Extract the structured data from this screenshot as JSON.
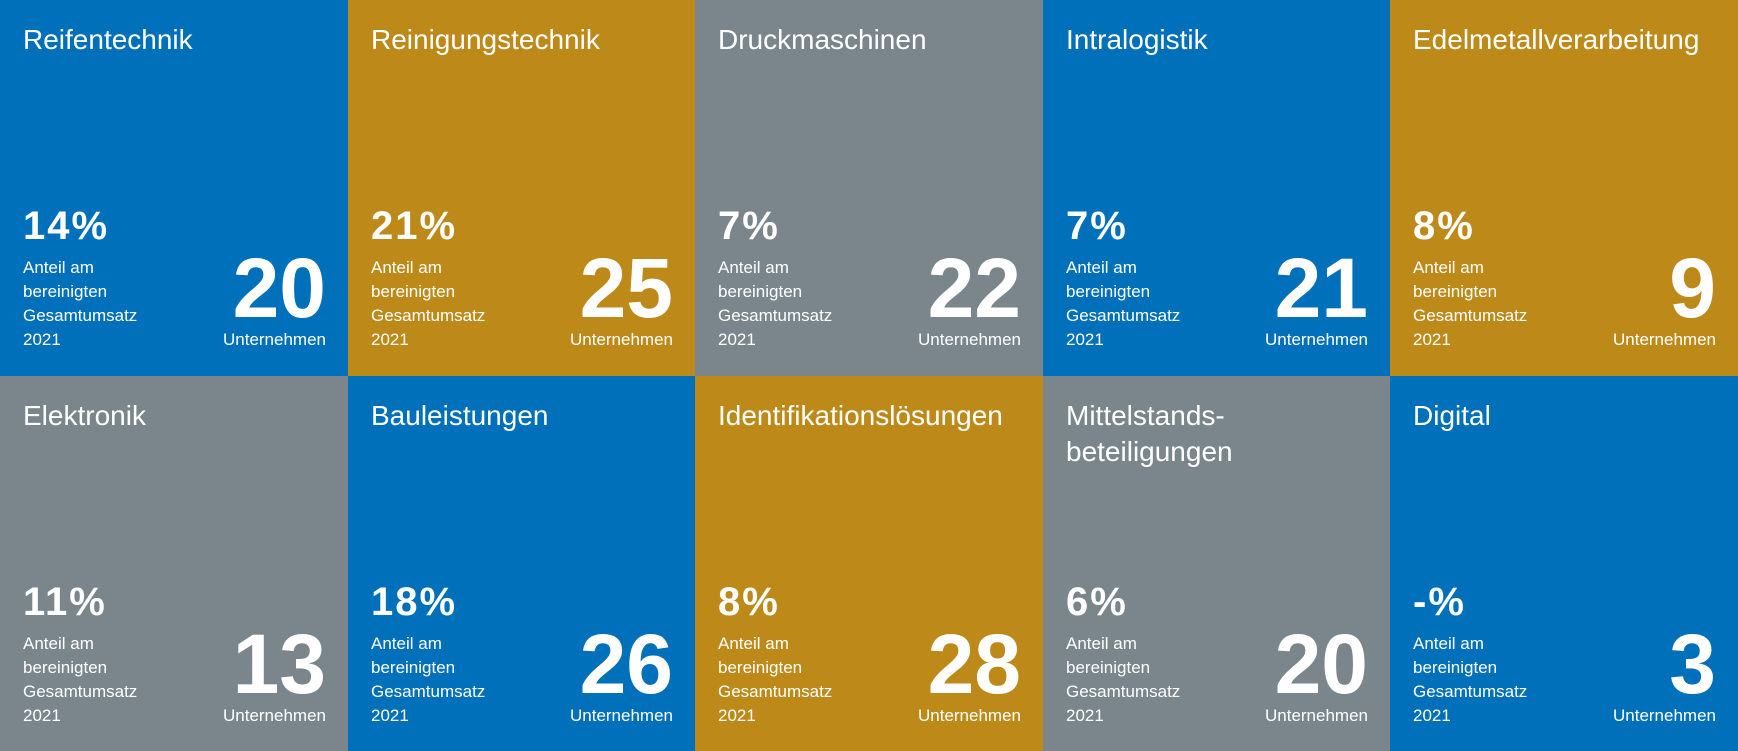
{
  "tiles": [
    {
      "title": [
        "Reifentechnik"
      ],
      "percent": "14%",
      "share_label": [
        "Anteil am",
        "bereinigten",
        "Gesamtumsatz",
        "2021"
      ],
      "count": "20",
      "count_label": "Unternehmen",
      "color": "#0070bb"
    },
    {
      "title": [
        "Reinigungstechnik"
      ],
      "percent": "21%",
      "share_label": [
        "Anteil am",
        "bereinigten",
        "Gesamtumsatz",
        "2021"
      ],
      "count": "25",
      "count_label": "Unternehmen",
      "color": "#bd8a1a"
    },
    {
      "title": [
        "Druckmaschinen"
      ],
      "percent": "7%",
      "share_label": [
        "Anteil am",
        "bereinigten",
        "Gesamtumsatz",
        "2021"
      ],
      "count": "22",
      "count_label": "Unternehmen",
      "color": "#7a868c"
    },
    {
      "title": [
        "Intralogistik"
      ],
      "percent": "7%",
      "share_label": [
        "Anteil am",
        "bereinigten",
        "Gesamtumsatz",
        "2021"
      ],
      "count": "21",
      "count_label": "Unternehmen",
      "color": "#0070bb"
    },
    {
      "title": [
        "Edelmetallverarbeitung"
      ],
      "percent": "8%",
      "share_label": [
        "Anteil am",
        "bereinigten",
        "Gesamtumsatz",
        "2021"
      ],
      "count": "9",
      "count_label": "Unternehmen",
      "color": "#bd8a1a"
    },
    {
      "title": [
        "Elektronik"
      ],
      "percent": "11%",
      "share_label": [
        "Anteil am",
        "bereinigten",
        "Gesamtumsatz",
        "2021"
      ],
      "count": "13",
      "count_label": "Unternehmen",
      "color": "#7a868c"
    },
    {
      "title": [
        "Bauleistungen"
      ],
      "percent": "18%",
      "share_label": [
        "Anteil am",
        "bereinigten",
        "Gesamtumsatz",
        "2021"
      ],
      "count": "26",
      "count_label": "Unternehmen",
      "color": "#0070bb"
    },
    {
      "title": [
        "Identifikationslösungen"
      ],
      "percent": "8%",
      "share_label": [
        "Anteil am",
        "bereinigten",
        "Gesamtumsatz",
        "2021"
      ],
      "count": "28",
      "count_label": "Unternehmen",
      "color": "#bd8a1a"
    },
    {
      "title": [
        "Mittelstands-",
        "beteiligungen"
      ],
      "percent": "6%",
      "share_label": [
        "Anteil am",
        "bereinigten",
        "Gesamtumsatz",
        "2021"
      ],
      "count": "20",
      "count_label": "Unternehmen",
      "color": "#7a868c"
    },
    {
      "title": [
        "Digital"
      ],
      "percent": "-%",
      "share_label": [
        "Anteil am",
        "bereinigten",
        "Gesamtumsatz",
        "2021"
      ],
      "count": "3",
      "count_label": "Unternehmen",
      "color": "#0070bb"
    }
  ]
}
